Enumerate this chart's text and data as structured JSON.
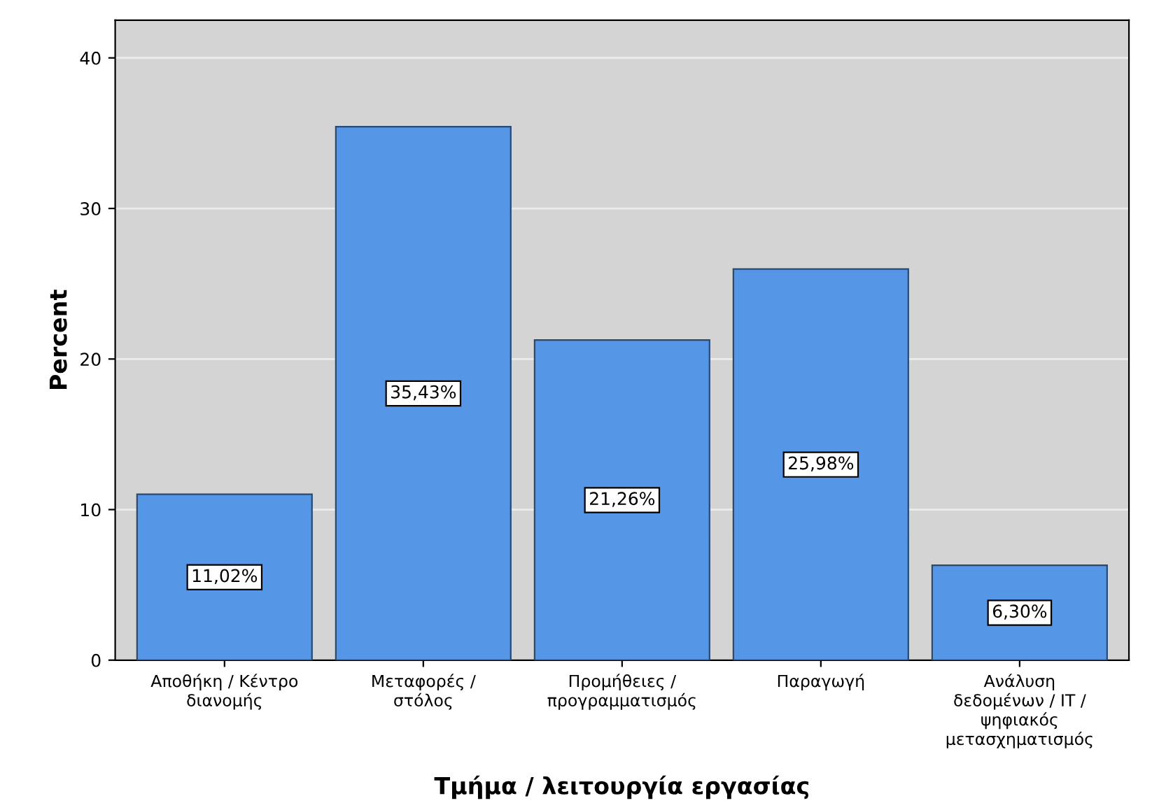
{
  "chart_data": {
    "type": "bar",
    "xlabel": "Τμήμα / λειτουργία εργασίας",
    "ylabel": "Percent",
    "categories": [
      "Αποθήκη / Κέντρο\nδιανομής",
      "Μεταφορές /\nστόλος",
      "Προμήθειες /\nπρογραμματισμός",
      "Παραγωγή",
      "Ανάλυση\nδεδομένων / IT /\nψηφιακός\nμετασχηματισμός"
    ],
    "values": [
      11.02,
      35.43,
      21.26,
      25.98,
      6.3
    ],
    "value_labels": [
      "11,02%",
      "35,43%",
      "21,26%",
      "25,98%",
      "6,30%"
    ],
    "color": "#5596e6",
    "ylim": [
      0,
      42.5
    ],
    "yticks": [
      0,
      10,
      20,
      30,
      40
    ],
    "grid": "y"
  }
}
